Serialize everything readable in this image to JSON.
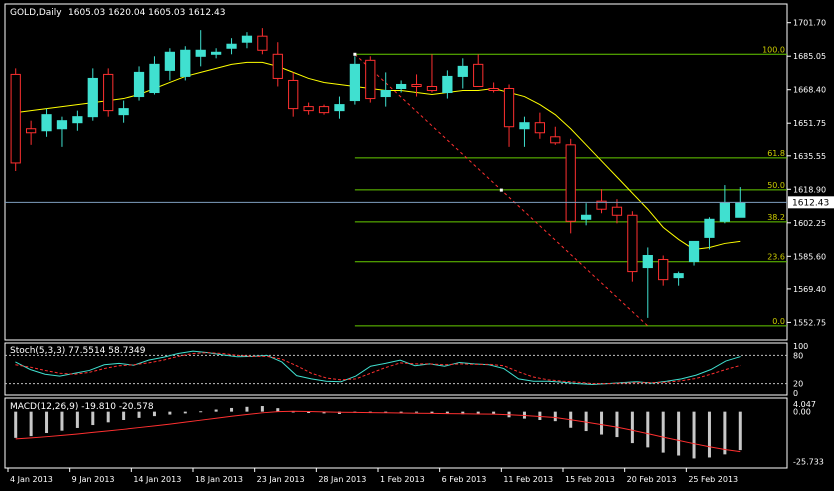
{
  "chart_data": [
    {
      "type": "candlestick",
      "title": "GOLD,Daily",
      "ohlc_label": "1605.03 1620.04 1605.03 1612.43",
      "current_price": 1612.43,
      "current_price_label": "1612.43",
      "ylim": [
        1545,
        1710
      ],
      "y_ticks": [
        1701.7,
        1685.05,
        1668.4,
        1651.75,
        1635.55,
        1618.9,
        1602.25,
        1585.6,
        1569.4,
        1552.75
      ],
      "y_tick_labels": [
        "1701.70",
        "1685.05",
        "1668.40",
        "1651.75",
        "1635.55",
        "1618.90",
        "1602.25",
        "1585.60",
        "1569.40",
        "1552.75"
      ],
      "x_labels": [
        "4 Jan 2013",
        "9 Jan 2013",
        "14 Jan 2013",
        "18 Jan 2013",
        "23 Jan 2013",
        "28 Jan 2013",
        "1 Feb 2013",
        "6 Feb 2013",
        "11 Feb 2013",
        "15 Feb 2013",
        "20 Feb 2013",
        "25 Feb 2013"
      ],
      "x_label_index": [
        0,
        3,
        6,
        9,
        12,
        15,
        18,
        21,
        24,
        27,
        30,
        33
      ],
      "candles": [
        [
          1676,
          1679,
          1628,
          1632
        ],
        [
          1649,
          1653,
          1641,
          1647
        ],
        [
          1648,
          1659,
          1645,
          1656
        ],
        [
          1649,
          1655,
          1640,
          1653
        ],
        [
          1652,
          1658,
          1648,
          1655
        ],
        [
          1655,
          1679,
          1653,
          1674
        ],
        [
          1676,
          1679,
          1655,
          1658
        ],
        [
          1656,
          1663,
          1652,
          1659
        ],
        [
          1665,
          1680,
          1663,
          1677
        ],
        [
          1667,
          1685,
          1666,
          1681
        ],
        [
          1678,
          1689,
          1673,
          1687
        ],
        [
          1675,
          1690,
          1673,
          1688
        ],
        [
          1685,
          1698,
          1680,
          1688
        ],
        [
          1686,
          1689,
          1684,
          1687
        ],
        [
          1689,
          1694,
          1686,
          1691
        ],
        [
          1692,
          1697,
          1689,
          1695
        ],
        [
          1695,
          1699,
          1686,
          1688
        ],
        [
          1686,
          1692,
          1670,
          1674
        ],
        [
          1673,
          1677,
          1655,
          1659
        ],
        [
          1660,
          1662,
          1656,
          1658
        ],
        [
          1660,
          1661,
          1656,
          1657
        ],
        [
          1658,
          1665,
          1654,
          1661
        ],
        [
          1663,
          1685,
          1661,
          1681
        ],
        [
          1683,
          1685,
          1662,
          1664
        ],
        [
          1665,
          1677,
          1660,
          1668
        ],
        [
          1669,
          1673,
          1667,
          1671
        ],
        [
          1671,
          1676,
          1665,
          1670
        ],
        [
          1670,
          1686,
          1667,
          1668
        ],
        [
          1667,
          1678,
          1664,
          1675
        ],
        [
          1675,
          1684,
          1669,
          1680
        ],
        [
          1681,
          1686,
          1670,
          1670
        ],
        [
          1669,
          1672,
          1667,
          1668
        ],
        [
          1669,
          1671,
          1640,
          1650
        ],
        [
          1649,
          1655,
          1640,
          1652
        ],
        [
          1652,
          1657,
          1644,
          1647
        ],
        [
          1645,
          1650,
          1641,
          1642
        ],
        [
          1641,
          1644,
          1597,
          1603
        ],
        [
          1604,
          1612,
          1601,
          1606
        ],
        [
          1613,
          1619,
          1607,
          1609
        ],
        [
          1610,
          1614,
          1602,
          1606
        ],
        [
          1606,
          1608,
          1573,
          1578
        ],
        [
          1580,
          1590,
          1555,
          1586
        ],
        [
          1584,
          1586,
          1571,
          1574
        ],
        [
          1575,
          1578,
          1571,
          1577
        ],
        [
          1583,
          1593,
          1581,
          1593
        ],
        [
          1595,
          1605,
          1589,
          1604
        ],
        [
          1603,
          1621,
          1602,
          1612
        ],
        [
          1605,
          1620,
          1605,
          1612
        ]
      ],
      "moving_average": [
        1657,
        1658,
        1659,
        1660,
        1661,
        1662,
        1663,
        1664,
        1666,
        1669,
        1672,
        1675,
        1677,
        1679,
        1681,
        1682,
        1682,
        1680,
        1677,
        1674,
        1672,
        1671,
        1670,
        1669,
        1668,
        1668,
        1667,
        1666,
        1667,
        1668,
        1668,
        1669,
        1667,
        1665,
        1661,
        1656,
        1649,
        1641,
        1633,
        1625,
        1617,
        1609,
        1600,
        1594,
        1589,
        1590,
        1592,
        1593
      ],
      "fibonacci": {
        "levels": [
          {
            "label": "100.0",
            "price": 1686
          },
          {
            "label": "61.8",
            "price": 1634.5
          },
          {
            "label": "50.0",
            "price": 1618.6
          },
          {
            "label": "38.2",
            "price": 1602.7
          },
          {
            "label": "23.6",
            "price": 1582.9
          },
          {
            "label": "0.0",
            "price": 1551
          }
        ],
        "start_index": 22,
        "end_index": 41
      },
      "colors": {
        "bull": "#40e0d0",
        "bear": "#ff3030",
        "ma": "#ffff00",
        "fib": "#66cc00",
        "trend": "#ff3030",
        "grid_bg": "#000000",
        "axis": "#ffffff"
      }
    },
    {
      "type": "line",
      "title": "Stoch(5,3,3) 77.5514 58.7349",
      "ylim": [
        0,
        100
      ],
      "y_ticks": [
        100,
        80,
        20,
        0
      ],
      "y_tick_labels": [
        "100",
        "80",
        "20",
        "0"
      ],
      "levels": [
        80,
        20
      ],
      "series": [
        {
          "values": [
            66,
            50,
            40,
            36,
            42,
            48,
            60,
            63,
            59,
            70,
            76,
            84,
            89,
            86,
            81,
            77,
            78,
            80,
            66,
            37,
            30,
            25,
            24,
            36,
            57,
            63,
            70,
            58,
            62,
            57,
            65,
            62,
            60,
            52,
            30,
            25,
            25,
            23,
            20,
            18,
            20,
            22,
            24,
            21,
            25,
            30,
            38,
            50,
            68,
            77.5514
          ],
          "color": "#40e0d0"
        },
        {
          "values": [
            60,
            55,
            48,
            42,
            40,
            44,
            52,
            58,
            60,
            64,
            70,
            78,
            84,
            86,
            84,
            80,
            78,
            78,
            72,
            58,
            42,
            32,
            28,
            30,
            42,
            54,
            64,
            62,
            62,
            60,
            62,
            61,
            61,
            58,
            45,
            34,
            28,
            25,
            23,
            20,
            20,
            21,
            22,
            22,
            23,
            26,
            31,
            40,
            50,
            58.7349
          ],
          "color": "#ff3030"
        }
      ]
    },
    {
      "type": "bar",
      "title": "MACD(12,26,9) -19.810 -20.578",
      "ylim": [
        -28,
        6
      ],
      "y_ticks": [
        4.047,
        0,
        -25.733
      ],
      "y_tick_labels": [
        "4.047",
        "0.00",
        "-25.733"
      ],
      "values": [
        -13.5,
        -12.6,
        -11.0,
        -9.8,
        -8.4,
        -6.9,
        -5.5,
        -4.3,
        -3.2,
        -2.3,
        -1.5,
        -0.9,
        0.2,
        1.1,
        1.9,
        2.5,
        2.9,
        1.8,
        0.1,
        -0.7,
        -0.9,
        -1.2,
        -0.6,
        -0.4,
        -0.2,
        -0.2,
        -0.3,
        -0.7,
        -1.0,
        -1.3,
        -1.2,
        -1.4,
        -2.9,
        -3.6,
        -4.3,
        -4.9,
        -8.3,
        -10.0,
        -11.8,
        -13.1,
        -16.2,
        -18.4,
        -21.1,
        -22.6,
        -24.1,
        -23.6,
        -22.0,
        -19.81
      ],
      "signal": [
        -14.0,
        -13.5,
        -12.9,
        -12.2,
        -11.5,
        -10.7,
        -9.9,
        -9.1,
        -8.2,
        -7.3,
        -6.4,
        -5.4,
        -4.4,
        -3.4,
        -2.4,
        -1.5,
        -0.6,
        0.0,
        0.2,
        0.1,
        -0.1,
        -0.3,
        -0.4,
        -0.5,
        -0.6,
        -0.7,
        -0.8,
        -0.9,
        -1.0,
        -1.1,
        -1.2,
        -1.3,
        -1.6,
        -2.0,
        -2.5,
        -3.0,
        -4.2,
        -5.4,
        -6.7,
        -8.0,
        -9.6,
        -11.3,
        -13.1,
        -14.8,
        -16.5,
        -18.1,
        -19.5,
        -20.578
      ],
      "colors": {
        "bar": "#c8c8c8",
        "signal": "#ff3030"
      }
    }
  ]
}
